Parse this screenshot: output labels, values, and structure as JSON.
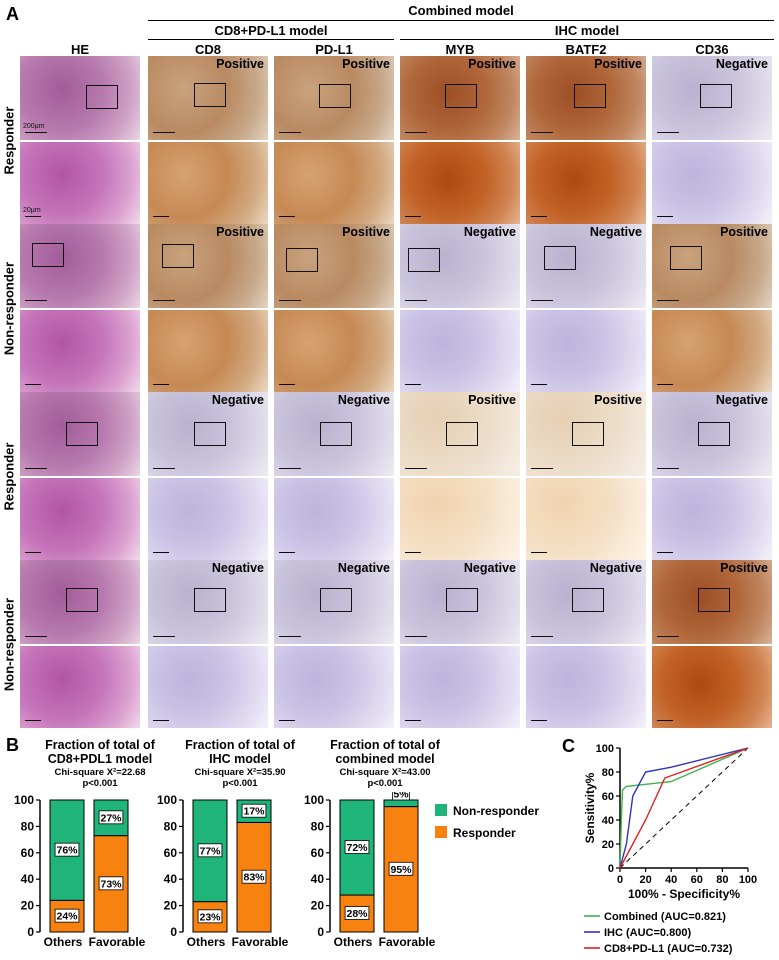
{
  "panels": {
    "a": "A",
    "b": "B",
    "c": "C"
  },
  "headers": {
    "combined_model": "Combined model",
    "cd8_pdl1_model": "CD8+PD-L1 model",
    "ihc_model": "IHC model",
    "columns": [
      "HE",
      "CD8",
      "PD-L1",
      "MYB",
      "BATF2",
      "CD36"
    ]
  },
  "rows": [
    {
      "label": "Responder",
      "statuses": [
        "",
        "Positive",
        "Positive",
        "Positive",
        "Positive",
        "Negative"
      ]
    },
    {
      "label": "Non-responder",
      "statuses": [
        "",
        "Positive",
        "Positive",
        "Negative",
        "Negative",
        "Positive"
      ]
    },
    {
      "label": "Responder",
      "statuses": [
        "",
        "Negative",
        "Negative",
        "Positive",
        "Positive",
        "Negative"
      ]
    },
    {
      "label": "Non-responder",
      "statuses": [
        "",
        "Negative",
        "Negative",
        "Negative",
        "Negative",
        "Positive"
      ]
    }
  ],
  "scale_labels": {
    "low": "200μm",
    "high": "20μm"
  },
  "colors": {
    "non_responder": "#1fb57a",
    "responder": "#f7820f",
    "combined": "#3cb44b",
    "ihc": "#3232c8",
    "cd8_pdl1": "#e02020",
    "diagonal": "#000000"
  },
  "chart_data": [
    {
      "type": "bar",
      "stacked": true,
      "title_lines": [
        "Fraction of total of",
        "CD8+PDL1 model"
      ],
      "stat_chi": "Chi-square X²=22.68",
      "stat_p": "p<0.001",
      "categories": [
        "Others",
        "Favorable"
      ],
      "series": [
        {
          "name": "Responder",
          "values": [
            24,
            73
          ],
          "labels": [
            "24%",
            "73%"
          ]
        },
        {
          "name": "Non-responder",
          "values": [
            76,
            27
          ],
          "labels": [
            "76%",
            "27%"
          ]
        }
      ],
      "ylim": [
        0,
        100
      ],
      "yticks": [
        "0",
        "20",
        "40",
        "60",
        "80",
        "100"
      ]
    },
    {
      "type": "bar",
      "stacked": true,
      "title_lines": [
        "Fraction of total of",
        "IHC model"
      ],
      "stat_chi": "Chi-square X²=35.90",
      "stat_p": "p<0.001",
      "categories": [
        "Others",
        "Favorable"
      ],
      "series": [
        {
          "name": "Responder",
          "values": [
            23,
            83
          ],
          "labels": [
            "23%",
            "83%"
          ]
        },
        {
          "name": "Non-responder",
          "values": [
            77,
            17
          ],
          "labels": [
            "77%",
            "17%"
          ]
        }
      ],
      "ylim": [
        0,
        100
      ],
      "yticks": [
        "0",
        "20",
        "40",
        "60",
        "80",
        "100"
      ]
    },
    {
      "type": "bar",
      "stacked": true,
      "title_lines": [
        "Fraction of total of",
        "combined model"
      ],
      "stat_chi": "Chi-square X²=43.00",
      "stat_p": "p<0.001",
      "categories": [
        "Others",
        "Favorable"
      ],
      "series": [
        {
          "name": "Responder",
          "values": [
            28,
            95
          ],
          "labels": [
            "28%",
            "95%"
          ]
        },
        {
          "name": "Non-responder",
          "values": [
            72,
            5
          ],
          "labels": [
            "72%",
            "5%"
          ]
        }
      ],
      "ylim": [
        0,
        100
      ],
      "yticks": [
        "0",
        "20",
        "40",
        "60",
        "80",
        "100"
      ],
      "legend": [
        "Non-responder",
        "Responder"
      ]
    },
    {
      "type": "line",
      "xlabel": "100% - Specificity%",
      "ylabel": "Sensitivity%",
      "xlim": [
        0,
        100
      ],
      "ylim": [
        0,
        100
      ],
      "xticks": [
        "0",
        "20",
        "40",
        "60",
        "80",
        "100"
      ],
      "yticks": [
        "0",
        "20",
        "40",
        "60",
        "80",
        "100"
      ],
      "series": [
        {
          "name": "Combined (AUC=0.821)",
          "x": [
            0,
            1,
            2,
            5,
            40,
            100
          ],
          "y": [
            0,
            40,
            65,
            68,
            72,
            100
          ]
        },
        {
          "name": "IHC (AUC=0.800)",
          "x": [
            0,
            5,
            10,
            20,
            40,
            100
          ],
          "y": [
            0,
            20,
            60,
            80,
            84,
            100
          ]
        },
        {
          "name": "CD8+PD-L1 (AUC=0.732)",
          "x": [
            0,
            20,
            35,
            100
          ],
          "y": [
            0,
            40,
            75,
            100
          ]
        }
      ],
      "reference_line": true
    }
  ]
}
